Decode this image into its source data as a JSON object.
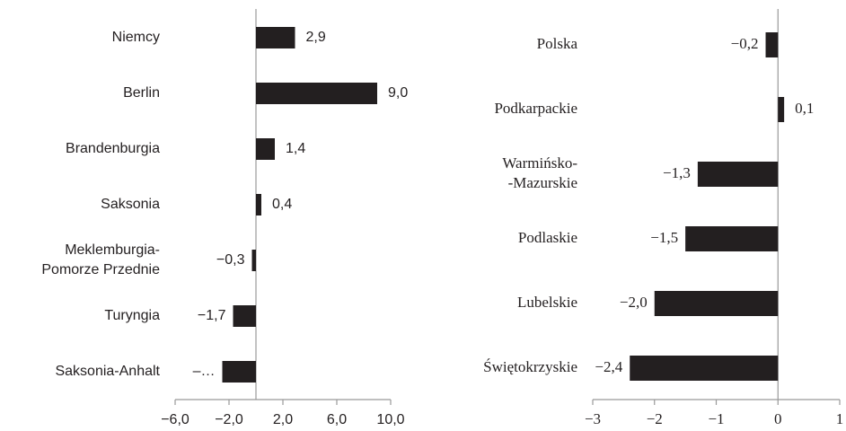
{
  "chart_data": [
    {
      "type": "barh",
      "categories": [
        "Niemcy",
        "Berlin",
        "Brandenburgia",
        "Saksonia",
        [
          "Meklemburgia-",
          "Pomorze Przednie"
        ],
        "Turyngia",
        "Saksonia-Anhalt"
      ],
      "values": [
        2.9,
        9.0,
        1.4,
        0.4,
        -0.3,
        -1.7,
        -2.5
      ],
      "value_labels": [
        "2,9",
        "9,0",
        "1,4",
        "0,4",
        "−0,3",
        "−1,7",
        "–…"
      ],
      "color": "#231f20",
      "xlim": [
        -6,
        10
      ],
      "xticks": [
        {
          "value": -6,
          "label": "−6,0"
        },
        {
          "value": -2,
          "label": "−2,0"
        },
        {
          "value": 2,
          "label": "2,0"
        },
        {
          "value": 6,
          "label": "6,0"
        },
        {
          "value": 10,
          "label": "10,0"
        }
      ],
      "grid": false
    },
    {
      "type": "barh",
      "categories": [
        "Polska",
        "Podkarpackie",
        [
          "Warmińsko-",
          "-Mazurskie"
        ],
        "Podlaskie",
        "Lubelskie",
        "Świętokrzyskie"
      ],
      "values": [
        -0.2,
        0.1,
        -1.3,
        -1.5,
        -2.0,
        -2.4
      ],
      "value_labels": [
        "−0,2",
        "0,1",
        "−1,3",
        "−1,5",
        "−2,0",
        "−2,4"
      ],
      "color": "#231f20",
      "xlim": [
        -3,
        1
      ],
      "xticks": [
        {
          "value": -3,
          "label": "−3"
        },
        {
          "value": -2,
          "label": "−2"
        },
        {
          "value": -1,
          "label": "−1"
        },
        {
          "value": 0,
          "label": "0"
        },
        {
          "value": 1,
          "label": "1"
        }
      ],
      "grid": false
    }
  ]
}
